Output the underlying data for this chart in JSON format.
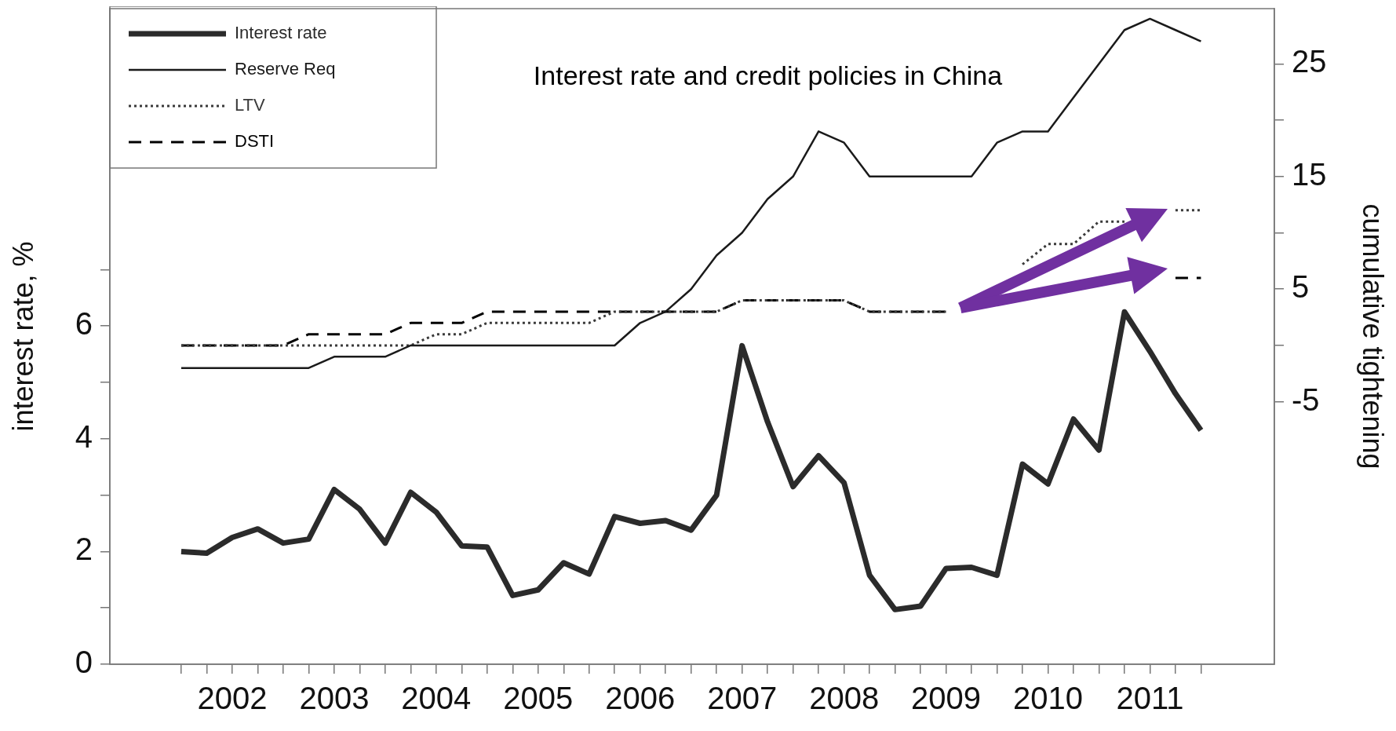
{
  "chart_data": {
    "type": "line",
    "title": "Interest rate and credit policies in China",
    "ylabel": "interest rate, %",
    "y2label": "cumulative tightening",
    "x": [
      2002,
      2002.25,
      2002.5,
      2002.75,
      2003,
      2003.25,
      2003.5,
      2003.75,
      2004,
      2004.25,
      2004.5,
      2004.75,
      2005,
      2005.25,
      2005.5,
      2005.75,
      2006,
      2006.25,
      2006.5,
      2006.75,
      2007,
      2007.25,
      2007.5,
      2007.75,
      2008,
      2008.25,
      2008.5,
      2008.75,
      2009,
      2009.25,
      2009.5,
      2009.75,
      2010,
      2010.25,
      2010.5,
      2010.75,
      2011,
      2011.25,
      2011.5,
      2011.75,
      2012
    ],
    "series": [
      {
        "name": "Interest rate",
        "color": "#2b2b2b",
        "axis": "y",
        "line_style": "solid",
        "values": [
          2.0,
          1.97,
          2.25,
          2.4,
          2.15,
          2.22,
          3.1,
          2.75,
          2.15,
          3.05,
          2.7,
          2.1,
          2.08,
          1.22,
          1.32,
          1.8,
          1.6,
          2.62,
          2.5,
          2.55,
          2.38,
          3.0,
          5.65,
          4.3,
          3.15,
          3.7,
          3.22,
          1.58,
          0.97,
          1.03,
          1.7,
          1.72,
          1.58,
          3.55,
          3.2,
          4.35,
          3.8,
          6.25,
          5.55,
          4.8,
          4.15
        ]
      },
      {
        "name": "Reserve Req",
        "color": "#1a1a1a",
        "axis": "y2",
        "line_style": "solid",
        "values": [
          -2,
          -2,
          -2,
          -2,
          -2,
          -2,
          -1,
          -1,
          -1,
          0,
          0,
          0,
          0,
          0,
          0,
          0,
          0,
          0,
          2,
          3,
          5,
          8,
          10,
          13,
          15,
          19,
          18,
          15,
          15,
          15,
          15,
          15,
          18,
          19,
          19,
          22,
          25,
          28,
          29,
          28,
          27
        ]
      },
      {
        "name": "LTV",
        "color": "#3a3a3a",
        "axis": "y2",
        "line_style": "dotted",
        "values": [
          0,
          0,
          0,
          0,
          0,
          0,
          0,
          0,
          0,
          0,
          1,
          1,
          2,
          2,
          2,
          2,
          2,
          3,
          3,
          3,
          3,
          3,
          4,
          4,
          4,
          4,
          4,
          3,
          3,
          3,
          3,
          null,
          null,
          7.2,
          9,
          9,
          11,
          11,
          null,
          12,
          12
        ]
      },
      {
        "name": "DSTI",
        "color": "#000000",
        "axis": "y2",
        "line_style": "dashed",
        "values": [
          0,
          0,
          0,
          0,
          0,
          1,
          1,
          1,
          1,
          2,
          2,
          2,
          3,
          3,
          3,
          3,
          3,
          3,
          3,
          3,
          3,
          3,
          4,
          4,
          4,
          4,
          4,
          3,
          3,
          3,
          3,
          null,
          null,
          null,
          null,
          null,
          null,
          null,
          null,
          6,
          6
        ]
      }
    ],
    "xlim": [
      2001.3,
      2012.72
    ],
    "xticks": [
      {
        "value": 2002,
        "label": null
      },
      {
        "value": 2002.25,
        "label": null
      },
      {
        "value": 2002.5,
        "label": "2002"
      },
      {
        "value": 2002.75,
        "label": null
      },
      {
        "value": 2003,
        "label": null
      },
      {
        "value": 2003.25,
        "label": null
      },
      {
        "value": 2003.5,
        "label": "2003"
      },
      {
        "value": 2003.75,
        "label": null
      },
      {
        "value": 2004,
        "label": null
      },
      {
        "value": 2004.25,
        "label": null
      },
      {
        "value": 2004.5,
        "label": "2004"
      },
      {
        "value": 2004.75,
        "label": null
      },
      {
        "value": 2005,
        "label": null
      },
      {
        "value": 2005.25,
        "label": null
      },
      {
        "value": 2005.5,
        "label": "2005"
      },
      {
        "value": 2005.75,
        "label": null
      },
      {
        "value": 2006,
        "label": null
      },
      {
        "value": 2006.25,
        "label": null
      },
      {
        "value": 2006.5,
        "label": "2006"
      },
      {
        "value": 2006.75,
        "label": null
      },
      {
        "value": 2007,
        "label": null
      },
      {
        "value": 2007.25,
        "label": null
      },
      {
        "value": 2007.5,
        "label": "2007"
      },
      {
        "value": 2007.75,
        "label": null
      },
      {
        "value": 2008,
        "label": null
      },
      {
        "value": 2008.25,
        "label": null
      },
      {
        "value": 2008.5,
        "label": "2008"
      },
      {
        "value": 2008.75,
        "label": null
      },
      {
        "value": 2009,
        "label": null
      },
      {
        "value": 2009.25,
        "label": null
      },
      {
        "value": 2009.5,
        "label": "2009"
      },
      {
        "value": 2009.75,
        "label": null
      },
      {
        "value": 2010,
        "label": null
      },
      {
        "value": 2010.25,
        "label": null
      },
      {
        "value": 2010.5,
        "label": "2010"
      },
      {
        "value": 2010.75,
        "label": null
      },
      {
        "value": 2011,
        "label": null
      },
      {
        "value": 2011.25,
        "label": null
      },
      {
        "value": 2011.5,
        "label": "2011"
      },
      {
        "value": 2011.75,
        "label": null
      },
      {
        "value": 2012,
        "label": null
      }
    ],
    "ylim": [
      0,
      11.63
    ],
    "yticks": [
      0,
      {
        "value": 1,
        "label": null
      },
      2,
      {
        "value": 3,
        "label": null
      },
      4,
      {
        "value": 5,
        "label": null
      },
      6,
      {
        "value": 7,
        "label": null
      }
    ],
    "y2lim": [
      -28.3,
      29.9
    ],
    "y2ticks": [
      -5,
      {
        "value": 0,
        "label": null
      },
      5,
      {
        "value": 10,
        "label": null
      },
      15,
      {
        "value": 20,
        "label": null
      },
      25
    ],
    "legend": "top left",
    "marker": "none"
  }
}
